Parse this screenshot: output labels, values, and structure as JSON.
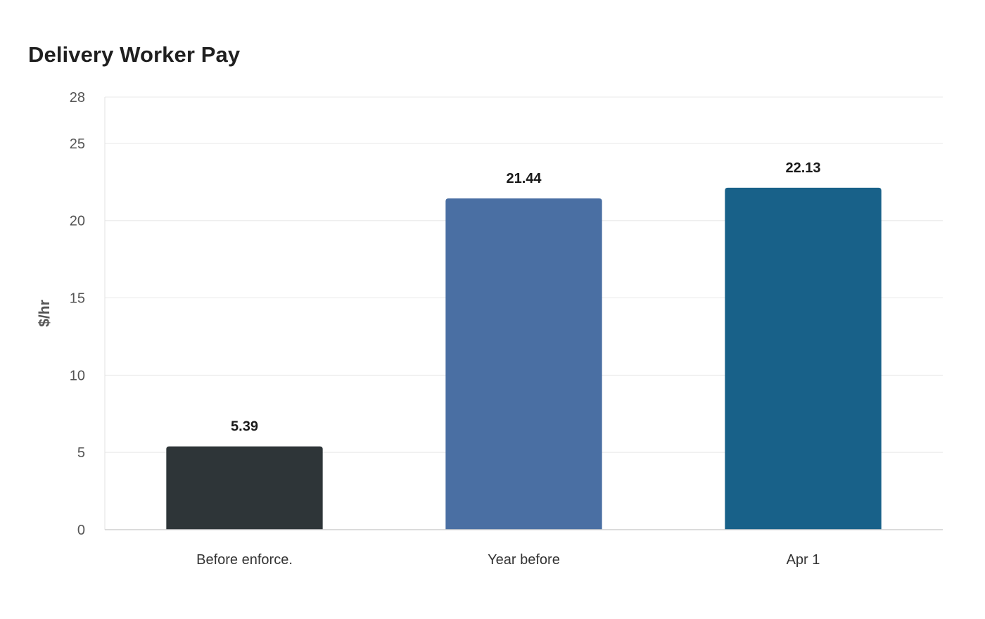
{
  "chart_data": {
    "type": "bar",
    "title": "Delivery Worker Pay",
    "xlabel": "",
    "ylabel": "$/hr",
    "categories": [
      "Before enforce.",
      "Year before",
      "Apr 1"
    ],
    "values": [
      5.39,
      21.44,
      22.13
    ],
    "value_labels": [
      "5.39",
      "21.44",
      "22.13"
    ],
    "colors": [
      "#2e3538",
      "#4a6fa3",
      "#186189"
    ],
    "ylim": [
      0,
      28
    ],
    "yticks": [
      0,
      5,
      10,
      15,
      20,
      25,
      28
    ],
    "grid": true,
    "legend": "none"
  }
}
